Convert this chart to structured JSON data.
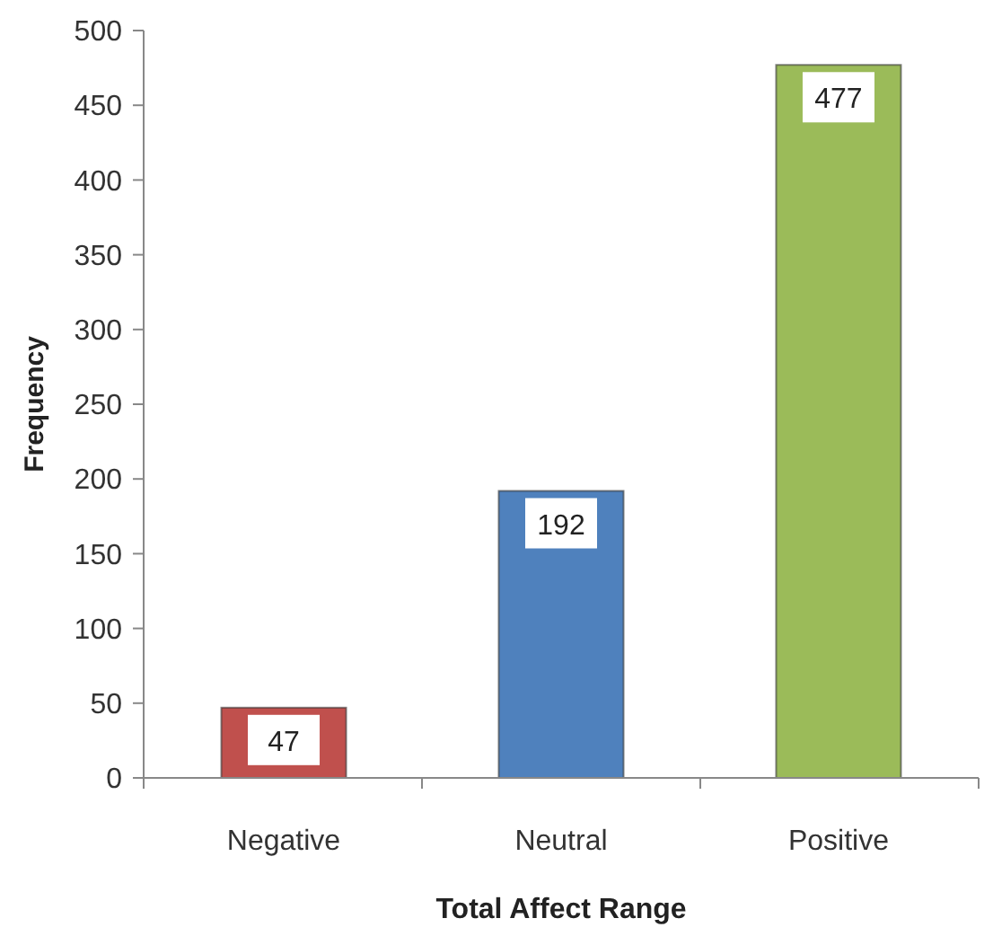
{
  "chart_data": {
    "type": "bar",
    "xlabel": "Total Affect Range",
    "ylabel": "Frequency",
    "categories": [
      "Negative",
      "Neutral",
      "Positive"
    ],
    "values": [
      47,
      192,
      477
    ],
    "colors": [
      "#c0504d",
      "#4f81bd",
      "#9bbb59"
    ],
    "ylim": [
      0,
      500
    ],
    "yticks": [
      0,
      50,
      100,
      150,
      200,
      250,
      300,
      350,
      400,
      450,
      500
    ],
    "data_labels": true,
    "grid": false
  }
}
